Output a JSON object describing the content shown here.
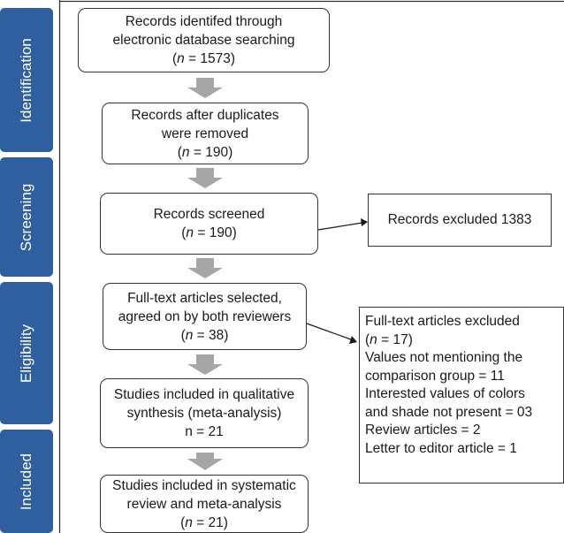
{
  "phases": {
    "identification": "Identification",
    "screening": "Screening",
    "eligibility": "Eligibility",
    "included": "Included"
  },
  "boxes": {
    "identified": {
      "line1": "Records identifed through",
      "line2": "electronic database searching",
      "n_label": "n",
      "n_value": " = 1573)"
    },
    "deduplicated": {
      "line1": "Records after duplicates",
      "line2": "were removed",
      "n_label": "n",
      "n_value": " = 190)"
    },
    "screened": {
      "line1": "Records screened",
      "n_label": "n",
      "n_value": " = 190)"
    },
    "fulltext": {
      "line1": "Full-text articles selected,",
      "line2": "agreed on by both reviewers",
      "n_label": "n",
      "n_value": " = 38)"
    },
    "qualitative": {
      "line1": "Studies included in qualitative",
      "line2": "synthesis  (meta-analysis)",
      "line3": "n = 21"
    },
    "systematic": {
      "line1": "Studies included in systematic",
      "line2": "review and meta-analysis",
      "n_label": "n",
      "n_value": " = 21)"
    }
  },
  "excluded_records": "Records excluded 1383",
  "excluded_fulltext": {
    "title": "Full-text articles excluded",
    "n_label": "n",
    "n_value": " = 17)",
    "reason1_line1": "Values not mentioning the",
    "reason1_line2": "comparison group = 11",
    "reason2_line1": "Interested values of colors",
    "reason2_line2": "and shade not present = 03",
    "reason3": "Review articles = 2",
    "reason4": "Letter to editor article = 1"
  }
}
